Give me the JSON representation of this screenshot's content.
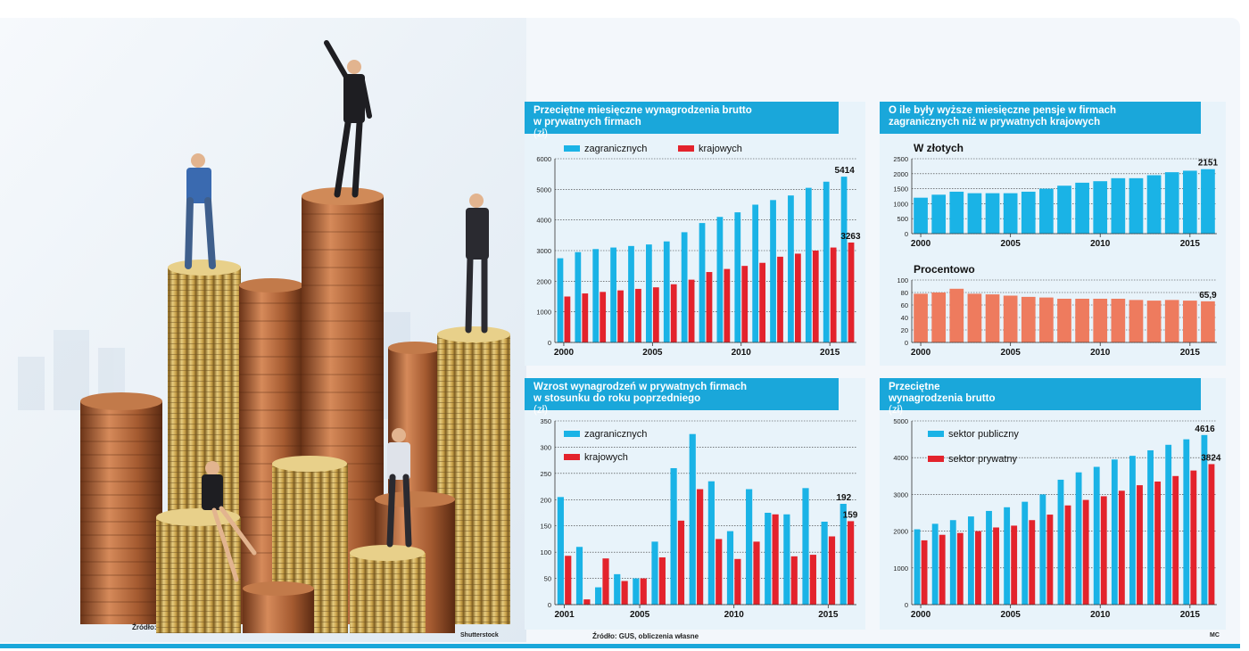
{
  "colors": {
    "cyan": "#1ab3e6",
    "red": "#e3232c",
    "salmon": "#ee7b5e",
    "titlebar": "#1aa7da"
  },
  "credits": {
    "zrodlo": "Źródło:",
    "shutterstock": "Shutterstock",
    "source": "Źródło: GUS, obliczenia własne",
    "author": "MC"
  },
  "chart_data": [
    {
      "id": "p1",
      "type": "bar",
      "title": "Przeciętne miesięczne wynagrodzenia brutto",
      "title2": "w prywatnych firmach",
      "unit": "(zł)",
      "x": [
        2000,
        2001,
        2002,
        2003,
        2004,
        2005,
        2006,
        2007,
        2008,
        2009,
        2010,
        2011,
        2012,
        2013,
        2014,
        2015,
        2016
      ],
      "xticks": [
        2000,
        2005,
        2010,
        2015
      ],
      "ylim": [
        0,
        6000
      ],
      "yticks": [
        0,
        1000,
        2000,
        3000,
        4000,
        5000,
        6000
      ],
      "series": [
        {
          "name": "zagranicznych",
          "color": "#1ab3e6",
          "values": [
            2750,
            2950,
            3050,
            3100,
            3150,
            3200,
            3300,
            3600,
            3900,
            4100,
            4250,
            4500,
            4650,
            4800,
            5050,
            5250,
            5414
          ]
        },
        {
          "name": "krajowych",
          "color": "#e3232c",
          "values": [
            1500,
            1600,
            1650,
            1700,
            1750,
            1800,
            1900,
            2050,
            2300,
            2400,
            2500,
            2600,
            2800,
            2900,
            3000,
            3100,
            3263
          ]
        }
      ],
      "annotations": [
        {
          "text": "5414",
          "series": 0,
          "index": 16
        },
        {
          "text": "3263",
          "series": 1,
          "index": 16
        }
      ]
    },
    {
      "id": "p2",
      "type": "bar",
      "title": "O ile były wyższe miesięczne pensje w firmach",
      "title2": "zagranicznych niż w prywatnych krajowych",
      "sub": [
        {
          "subtitle": "W złotych",
          "x": [
            2000,
            2001,
            2002,
            2003,
            2004,
            2005,
            2006,
            2007,
            2008,
            2009,
            2010,
            2011,
            2012,
            2013,
            2014,
            2015,
            2016
          ],
          "xticks": [
            2000,
            2005,
            2010,
            2015
          ],
          "ylim": [
            0,
            2500
          ],
          "yticks": [
            0,
            500,
            1000,
            1500,
            2000,
            2500
          ],
          "series": [
            {
              "color": "#1ab3e6",
              "values": [
                1200,
                1300,
                1400,
                1350,
                1350,
                1350,
                1400,
                1500,
                1600,
                1700,
                1750,
                1850,
                1850,
                1950,
                2050,
                2100,
                2151
              ]
            }
          ],
          "annotations": [
            {
              "text": "2151",
              "series": 0,
              "index": 16
            }
          ]
        },
        {
          "subtitle": "Procentowo",
          "x": [
            2000,
            2001,
            2002,
            2003,
            2004,
            2005,
            2006,
            2007,
            2008,
            2009,
            2010,
            2011,
            2012,
            2013,
            2014,
            2015,
            2016
          ],
          "xticks": [
            2000,
            2005,
            2010,
            2015
          ],
          "ylim": [
            0,
            100
          ],
          "yticks": [
            0,
            20,
            40,
            60,
            80,
            100
          ],
          "series": [
            {
              "color": "#ee7b5e",
              "values": [
                78,
                80,
                86,
                78,
                77,
                75,
                73,
                72,
                70,
                70,
                70,
                70,
                68,
                67,
                68,
                67,
                65.9
              ]
            }
          ],
          "annotations": [
            {
              "text": "65,9",
              "series": 0,
              "index": 16
            }
          ]
        }
      ]
    },
    {
      "id": "p3",
      "type": "bar",
      "title": "Wzrost wynagrodzeń w prywatnych firmach",
      "title2": "w stosunku do roku poprzedniego",
      "unit": "(zł)",
      "x": [
        2001,
        2002,
        2003,
        2004,
        2005,
        2006,
        2007,
        2008,
        2009,
        2010,
        2011,
        2012,
        2013,
        2014,
        2015,
        2016
      ],
      "xticks": [
        2001,
        2005,
        2010,
        2015
      ],
      "ylim": [
        0,
        350
      ],
      "yticks": [
        0,
        50,
        100,
        150,
        200,
        250,
        300,
        350
      ],
      "series": [
        {
          "name": "zagranicznych",
          "color": "#1ab3e6",
          "values": [
            205,
            110,
            33,
            58,
            50,
            120,
            260,
            325,
            235,
            140,
            220,
            175,
            172,
            222,
            158,
            192
          ]
        },
        {
          "name": "krajowych",
          "color": "#e3232c",
          "values": [
            93,
            10,
            88,
            45,
            50,
            90,
            160,
            220,
            125,
            87,
            120,
            172,
            92,
            95,
            130,
            159
          ]
        }
      ],
      "annotations": [
        {
          "text": "192",
          "series": 0,
          "index": 15
        },
        {
          "text": "159",
          "series": 1,
          "index": 15
        }
      ]
    },
    {
      "id": "p4",
      "type": "bar",
      "title": "Przeciętne",
      "title2": "wynagrodzenia brutto",
      "unit": "(zł)",
      "x": [
        2000,
        2001,
        2002,
        2003,
        2004,
        2005,
        2006,
        2007,
        2008,
        2009,
        2010,
        2011,
        2012,
        2013,
        2014,
        2015,
        2016
      ],
      "xticks": [
        2000,
        2005,
        2010,
        2015
      ],
      "ylim": [
        0,
        5000
      ],
      "yticks": [
        0,
        1000,
        2000,
        3000,
        4000,
        5000
      ],
      "series": [
        {
          "name": "sektor publiczny",
          "color": "#1ab3e6",
          "values": [
            2050,
            2200,
            2300,
            2400,
            2550,
            2650,
            2800,
            3000,
            3400,
            3600,
            3750,
            3950,
            4050,
            4200,
            4350,
            4500,
            4616
          ]
        },
        {
          "name": "sektor prywatny",
          "color": "#e3232c",
          "values": [
            1750,
            1900,
            1950,
            2000,
            2100,
            2150,
            2300,
            2450,
            2700,
            2850,
            2950,
            3100,
            3250,
            3350,
            3500,
            3650,
            3824
          ]
        }
      ],
      "annotations": [
        {
          "text": "4616",
          "series": 0,
          "index": 16
        },
        {
          "text": "3824",
          "series": 1,
          "index": 16
        }
      ]
    }
  ]
}
